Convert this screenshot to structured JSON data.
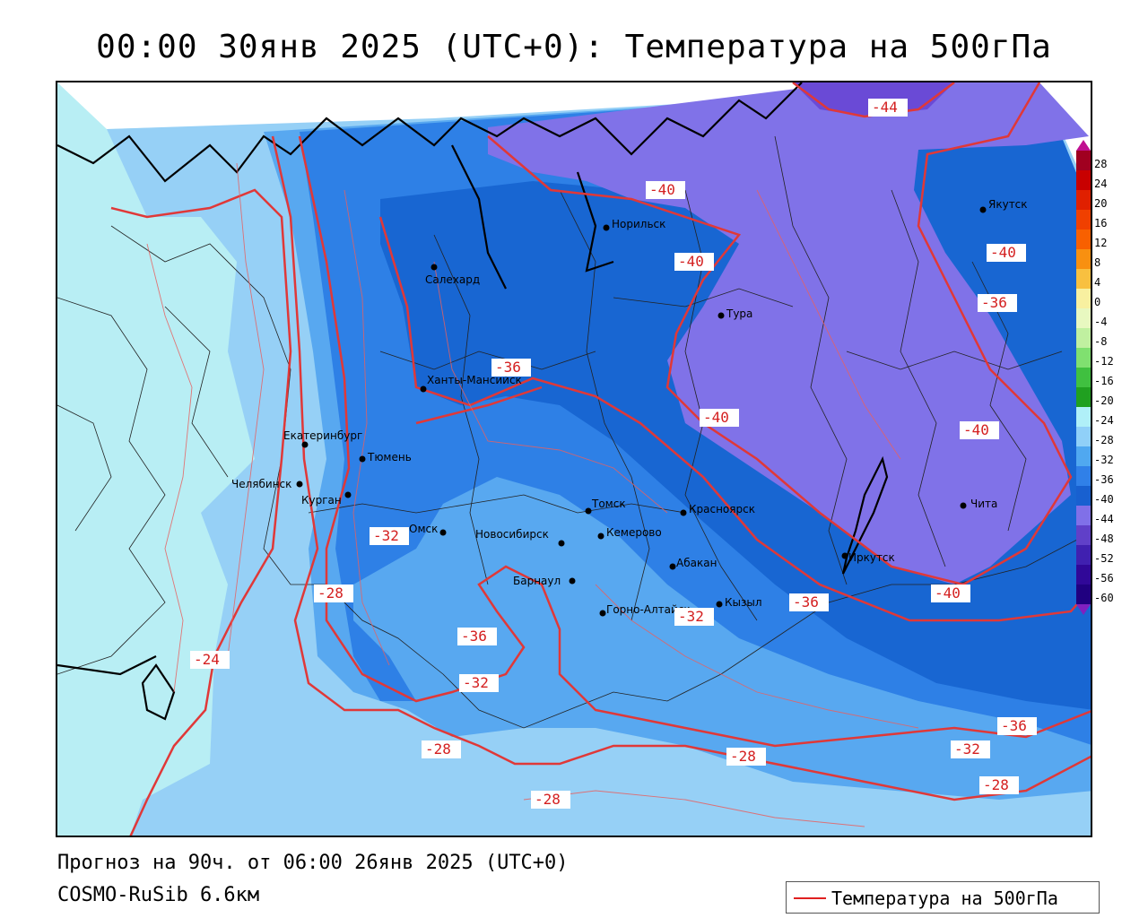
{
  "title": "00:00 30янв 2025 (UTC+0): Температура на 500гПа",
  "footer": {
    "forecast": "Прогноз на 90ч. от 06:00 26янв 2025 (UTC+0)",
    "model": "COSMO-RuSib 6.6км"
  },
  "legend": {
    "label": "Температура на 500гПа",
    "line_color": "#e02020"
  },
  "colorbar": {
    "ticks": [
      "28",
      "24",
      "20",
      "16",
      "12",
      "8",
      "4",
      "0",
      "-4",
      "-8",
      "-12",
      "-16",
      "-20",
      "-24",
      "-28",
      "-32",
      "-36",
      "-40",
      "-44",
      "-48",
      "-52",
      "-56",
      "-60"
    ],
    "colors": [
      "#a00020",
      "#c80000",
      "#e02000",
      "#f04000",
      "#f86000",
      "#f89010",
      "#f8c040",
      "#f8f0a0",
      "#e8f8c0",
      "#c0f0a0",
      "#80e070",
      "#40c040",
      "#20a020",
      "#b0f0f8",
      "#90d0f8",
      "#50a8f0",
      "#3080e8",
      "#1860d0",
      "#8070e8",
      "#6040c8",
      "#4020b0",
      "#300898",
      "#200080"
    ]
  },
  "fill_colors": {
    "t_above_24": "#b8eef4",
    "t_24_28": "#96d0f6",
    "t_28_32": "#58a8f0",
    "t_32_36": "#2e80e6",
    "t_36_40": "#1866d2",
    "t_below_40": "#8072e8",
    "t_below_44": "#6a4ad6"
  },
  "cities": [
    {
      "name": "Норильск"
    },
    {
      "name": "Якутск"
    },
    {
      "name": "Салехард"
    },
    {
      "name": "Тура"
    },
    {
      "name": "Ханты-Мансийск"
    },
    {
      "name": "Екатеринбург"
    },
    {
      "name": "Тюмень"
    },
    {
      "name": "Челябинск"
    },
    {
      "name": "Курган"
    },
    {
      "name": "Томск"
    },
    {
      "name": "Красноярск"
    },
    {
      "name": "Омск"
    },
    {
      "name": "Новосибирск"
    },
    {
      "name": "Кемерово"
    },
    {
      "name": "Абакан"
    },
    {
      "name": "Барнаул"
    },
    {
      "name": "Иркутск"
    },
    {
      "name": "Чита"
    },
    {
      "name": "Горно-Алтайск"
    },
    {
      "name": "Кызыл"
    }
  ],
  "isoline_labels": [
    "-44",
    "-40",
    "-40",
    "-40",
    "-40",
    "-36",
    "-36",
    "-40",
    "-36",
    "-40",
    "-32",
    "-28",
    "-36",
    "-32",
    "-32",
    "-24",
    "-28",
    "-36",
    "-28",
    "-32",
    "-28",
    "-28"
  ]
}
